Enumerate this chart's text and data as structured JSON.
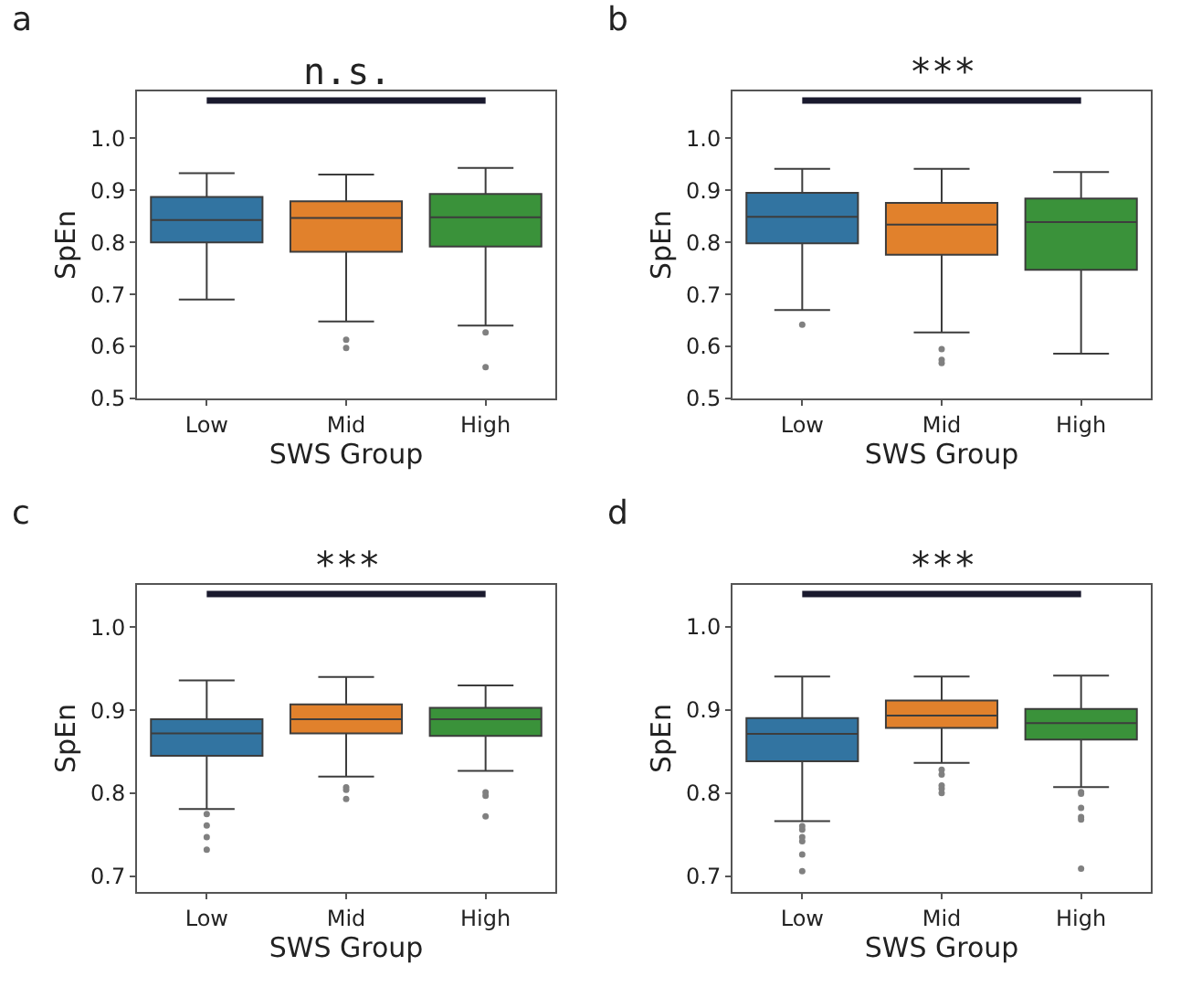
{
  "chart_data": [
    {
      "type": "box",
      "title": "a",
      "categories": [
        "Low",
        "Mid",
        "High"
      ],
      "xlabel": "SWS Group",
      "ylabel": "SpEn",
      "colors": [
        "#3274a1",
        "#e1812c",
        "#3a923a"
      ],
      "ylim": [
        0.5,
        1.09
      ],
      "yticks": [
        {
          "value": 0.5,
          "label": "0.5"
        },
        {
          "value": 0.6,
          "label": "0.6"
        },
        {
          "value": 0.7,
          "label": "0.7"
        },
        {
          "value": 0.8,
          "label": "0.8"
        },
        {
          "value": 0.9,
          "label": "0.9"
        },
        {
          "value": 1.0,
          "label": "1.0"
        }
      ],
      "annotations": [
        "n.s."
      ],
      "boxes": [
        {
          "low": 0.69,
          "q1": 0.8,
          "median": 0.843,
          "q3": 0.887,
          "high": 0.933
        },
        {
          "low": 0.648,
          "q1": 0.782,
          "median": 0.847,
          "q3": 0.879,
          "high": 0.93,
          "outliers": [
            0.613,
            0.597
          ]
        },
        {
          "low": 0.64,
          "q1": 0.792,
          "median": 0.848,
          "q3": 0.893,
          "high": 0.943,
          "outliers": [
            0.627,
            0.56
          ]
        }
      ]
    },
    {
      "type": "box",
      "title": "b",
      "categories": [
        "Low",
        "Mid",
        "High"
      ],
      "xlabel": "SWS Group",
      "ylabel": "SpEn",
      "colors": [
        "#3274a1",
        "#e1812c",
        "#3a923a"
      ],
      "ylim": [
        0.5,
        1.09
      ],
      "yticks": [
        {
          "value": 0.5,
          "label": "0.5"
        },
        {
          "value": 0.6,
          "label": "0.6"
        },
        {
          "value": 0.7,
          "label": "0.7"
        },
        {
          "value": 0.8,
          "label": "0.8"
        },
        {
          "value": 0.9,
          "label": "0.9"
        },
        {
          "value": 1.0,
          "label": "1.0"
        }
      ],
      "annotations": [
        "***"
      ],
      "boxes": [
        {
          "low": 0.67,
          "q1": 0.798,
          "median": 0.849,
          "q3": 0.895,
          "high": 0.941,
          "outliers": [
            0.642
          ]
        },
        {
          "low": 0.627,
          "q1": 0.776,
          "median": 0.834,
          "q3": 0.876,
          "high": 0.941,
          "outliers": [
            0.595,
            0.574,
            0.568
          ]
        },
        {
          "low": 0.586,
          "q1": 0.747,
          "median": 0.839,
          "q3": 0.884,
          "high": 0.935
        }
      ]
    },
    {
      "type": "box",
      "title": "c",
      "categories": [
        "Low",
        "Mid",
        "High"
      ],
      "xlabel": "SWS Group",
      "ylabel": "SpEn",
      "colors": [
        "#3274a1",
        "#e1812c",
        "#3a923a"
      ],
      "ylim": [
        0.681,
        1.051
      ],
      "yticks": [
        {
          "value": 0.7,
          "label": "0.7"
        },
        {
          "value": 0.8,
          "label": "0.8"
        },
        {
          "value": 0.9,
          "label": "0.9"
        },
        {
          "value": 1.0,
          "label": "1.0"
        }
      ],
      "annotations": [
        "***"
      ],
      "boxes": [
        {
          "low": 0.781,
          "q1": 0.845,
          "median": 0.872,
          "q3": 0.889,
          "high": 0.936,
          "outliers": [
            0.775,
            0.761,
            0.747,
            0.732
          ]
        },
        {
          "low": 0.82,
          "q1": 0.872,
          "median": 0.889,
          "q3": 0.907,
          "high": 0.94,
          "outliers": [
            0.807,
            0.804,
            0.793
          ]
        },
        {
          "low": 0.827,
          "q1": 0.869,
          "median": 0.889,
          "q3": 0.903,
          "high": 0.93,
          "outliers": [
            0.801,
            0.797,
            0.772
          ]
        }
      ]
    },
    {
      "type": "box",
      "title": "d",
      "categories": [
        "Low",
        "Mid",
        "High"
      ],
      "xlabel": "SWS Group",
      "ylabel": "SpEn",
      "colors": [
        "#3274a1",
        "#e1812c",
        "#3a923a"
      ],
      "ylim": [
        0.681,
        1.05
      ],
      "yticks": [
        {
          "value": 0.7,
          "label": "0.7"
        },
        {
          "value": 0.8,
          "label": "0.8"
        },
        {
          "value": 0.9,
          "label": "0.9"
        },
        {
          "value": 1.0,
          "label": "1.0"
        }
      ],
      "annotations": [
        "***"
      ],
      "boxes": [
        {
          "low": 0.766,
          "q1": 0.838,
          "median": 0.871,
          "q3": 0.89,
          "high": 0.94,
          "outliers": [
            0.76,
            0.756,
            0.747,
            0.742,
            0.726,
            0.706
          ]
        },
        {
          "low": 0.836,
          "q1": 0.878,
          "median": 0.893,
          "q3": 0.911,
          "high": 0.94,
          "outliers": [
            0.828,
            0.822,
            0.809,
            0.805,
            0.8
          ]
        },
        {
          "low": 0.807,
          "q1": 0.864,
          "median": 0.884,
          "q3": 0.901,
          "high": 0.941,
          "outliers": [
            0.801,
            0.799,
            0.782,
            0.771,
            0.768,
            0.709
          ]
        }
      ]
    }
  ]
}
